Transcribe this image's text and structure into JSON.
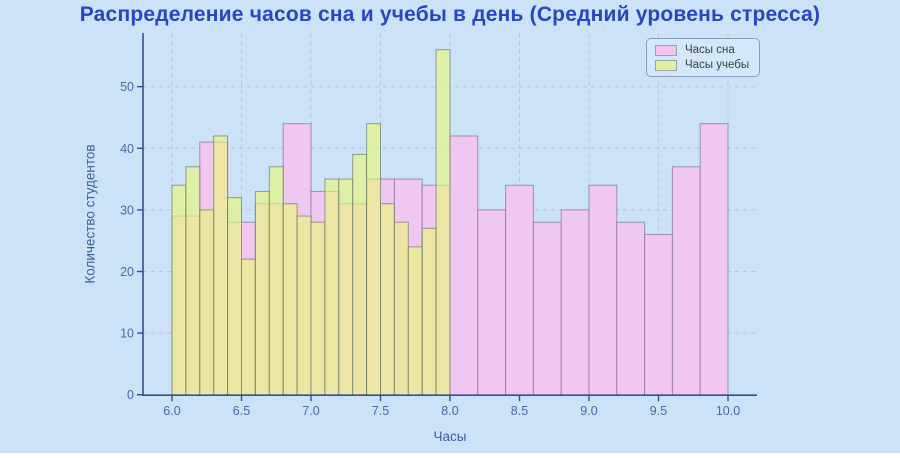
{
  "title": "Распределение часов сна и учебы в день (Средний уровень стресса)",
  "chart_data": {
    "type": "histogram",
    "title": "Распределение часов сна и учебы в день (Средний уровень стресса)",
    "xlabel": "Часы",
    "ylabel": "Количество студентов",
    "xlim": [
      5.79,
      10.21
    ],
    "ylim": [
      0,
      58.7
    ],
    "x_tick_labels": [
      "6.0",
      "6.5",
      "7.0",
      "7.5",
      "8.0",
      "8.5",
      "9.0",
      "9.5",
      "10.0"
    ],
    "x_tick_values": [
      6.0,
      6.5,
      7.0,
      7.5,
      8.0,
      8.5,
      9.0,
      9.5,
      10.0
    ],
    "y_tick_values": [
      0,
      10,
      20,
      30,
      40,
      50
    ],
    "grid": "dashed both axes",
    "legend_position": "top-right",
    "series": [
      {
        "name": "Часы сна",
        "bin_start": 6.0,
        "bin_width": 0.2,
        "counts": [
          29,
          41,
          28,
          31,
          44,
          33,
          31,
          35,
          35,
          34,
          42,
          30,
          34,
          28,
          30,
          34,
          28,
          26,
          37,
          44
        ],
        "fill": "#efc7f0",
        "fill_opacity": 1,
        "stroke": "rgba(128,116,150,0.7)",
        "legend_fill": "#f2c4ee"
      },
      {
        "name": "Часы учебы",
        "bin_start": 6.0,
        "bin_width": 0.1,
        "counts": [
          34,
          37,
          30,
          42,
          32,
          22,
          33,
          37,
          31,
          29,
          28,
          35,
          35,
          39,
          44,
          31,
          28,
          24,
          27,
          56
        ],
        "fill": "#eaf878",
        "fill_opacity": 0.62,
        "stroke": "rgba(112,124,104,0.7)",
        "legend_fill": "#ddf09e"
      }
    ]
  },
  "colors": {
    "figure_background": "#cbe2f8",
    "title_text": "#2946c2",
    "axis_label_text": "#3e5f9e",
    "tick_label_text": "#4a6aa8",
    "spine": "#35508c",
    "gridline": "#b6c4d6",
    "legend_background": "#d3e8fb",
    "legend_border": "#8a9cc2"
  }
}
